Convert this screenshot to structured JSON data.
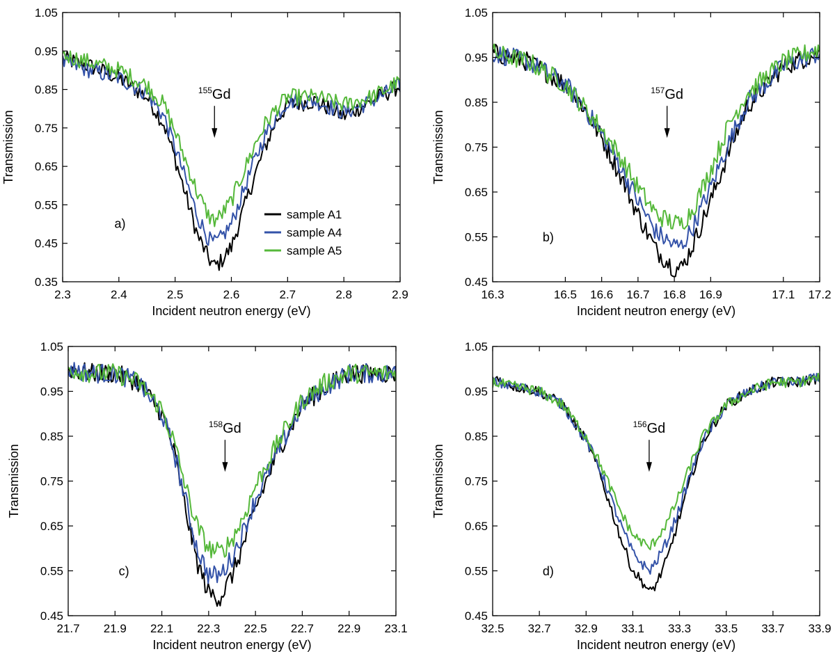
{
  "figure": {
    "series_colors": {
      "A1": "#000000",
      "A4": "#3352a8",
      "A5": "#55b83a"
    },
    "legend": [
      "sample A1",
      "sample A4",
      "sample A5"
    ]
  },
  "chart_data": [
    {
      "type": "line",
      "panel": "a)",
      "annotation": {
        "isotope_mass": "155",
        "isotope_symbol": "Gd",
        "arrow_x": 2.57
      },
      "xlabel": "Incident neutron energy (eV)",
      "ylabel": "Transmission",
      "xlim": [
        2.3,
        2.9
      ],
      "ylim": [
        0.35,
        1.05
      ],
      "xticks": [
        2.3,
        2.4,
        2.5,
        2.6,
        2.7,
        2.8,
        2.9
      ],
      "xtick_labels": [
        "2.3",
        "2.4",
        "2.5",
        "2.6",
        "2.7",
        "2.8",
        "2.9"
      ],
      "yticks": [
        0.35,
        0.45,
        0.55,
        0.65,
        0.75,
        0.85,
        0.95,
        1.05
      ],
      "ytick_labels": [
        "0.35",
        "0.45",
        "0.55",
        "0.65",
        "0.75",
        "0.85",
        "0.95",
        "1.05"
      ],
      "legend_location": "center-right",
      "series": [
        {
          "name": "sample A1",
          "x": [
            2.3,
            2.35,
            2.4,
            2.45,
            2.48,
            2.5,
            2.52,
            2.54,
            2.56,
            2.57,
            2.58,
            2.6,
            2.62,
            2.64,
            2.66,
            2.68,
            2.7,
            2.75,
            2.8,
            2.85,
            2.9
          ],
          "y": [
            0.93,
            0.91,
            0.88,
            0.83,
            0.76,
            0.67,
            0.57,
            0.47,
            0.41,
            0.39,
            0.4,
            0.44,
            0.53,
            0.62,
            0.7,
            0.77,
            0.81,
            0.82,
            0.78,
            0.82,
            0.86
          ]
        },
        {
          "name": "sample A4",
          "x": [
            2.3,
            2.35,
            2.4,
            2.45,
            2.48,
            2.5,
            2.52,
            2.54,
            2.56,
            2.57,
            2.58,
            2.6,
            2.62,
            2.64,
            2.66,
            2.68,
            2.7,
            2.75,
            2.8,
            2.85,
            2.9
          ],
          "y": [
            0.92,
            0.9,
            0.88,
            0.84,
            0.78,
            0.7,
            0.61,
            0.52,
            0.46,
            0.45,
            0.46,
            0.5,
            0.58,
            0.66,
            0.73,
            0.78,
            0.82,
            0.82,
            0.79,
            0.82,
            0.86
          ]
        },
        {
          "name": "sample A5",
          "x": [
            2.3,
            2.35,
            2.4,
            2.45,
            2.48,
            2.5,
            2.52,
            2.54,
            2.56,
            2.57,
            2.58,
            2.6,
            2.62,
            2.64,
            2.66,
            2.68,
            2.7,
            2.75,
            2.8,
            2.85,
            2.9
          ],
          "y": [
            0.94,
            0.92,
            0.9,
            0.86,
            0.81,
            0.74,
            0.66,
            0.58,
            0.52,
            0.51,
            0.52,
            0.56,
            0.63,
            0.7,
            0.76,
            0.8,
            0.83,
            0.83,
            0.81,
            0.83,
            0.87
          ]
        }
      ]
    },
    {
      "type": "line",
      "panel": "b)",
      "annotation": {
        "isotope_mass": "157",
        "isotope_symbol": "Gd",
        "arrow_x": 16.78
      },
      "xlabel": "Incident neutron energy (eV)",
      "ylabel": "Transmission",
      "xlim": [
        16.3,
        17.2
      ],
      "ylim": [
        0.45,
        1.05
      ],
      "xticks": [
        16.3,
        16.5,
        16.6,
        16.7,
        16.8,
        16.9,
        17.1,
        17.2
      ],
      "xtick_labels": [
        "16.3",
        "16.5",
        "16.6",
        "16.7",
        "16.8",
        "16.9",
        "17.1",
        "17.2"
      ],
      "yticks": [
        0.45,
        0.55,
        0.65,
        0.75,
        0.85,
        0.95,
        1.05
      ],
      "ytick_labels": [
        "0.45",
        "0.55",
        "0.65",
        "0.75",
        "0.85",
        "0.95",
        "1.05"
      ],
      "series": [
        {
          "name": "sample A1",
          "x": [
            16.3,
            16.4,
            16.5,
            16.55,
            16.6,
            16.65,
            16.7,
            16.75,
            16.8,
            16.82,
            16.85,
            16.9,
            16.95,
            17.0,
            17.1,
            17.2
          ],
          "y": [
            0.96,
            0.94,
            0.89,
            0.84,
            0.77,
            0.69,
            0.6,
            0.52,
            0.48,
            0.48,
            0.53,
            0.63,
            0.74,
            0.84,
            0.93,
            0.96
          ]
        },
        {
          "name": "sample A4",
          "x": [
            16.3,
            16.4,
            16.5,
            16.55,
            16.6,
            16.65,
            16.7,
            16.75,
            16.8,
            16.82,
            16.85,
            16.9,
            16.95,
            17.0,
            17.1,
            17.2
          ],
          "y": [
            0.96,
            0.94,
            0.89,
            0.84,
            0.78,
            0.71,
            0.63,
            0.56,
            0.53,
            0.53,
            0.57,
            0.66,
            0.76,
            0.85,
            0.93,
            0.96
          ]
        },
        {
          "name": "sample A5",
          "x": [
            16.3,
            16.4,
            16.5,
            16.55,
            16.6,
            16.65,
            16.7,
            16.75,
            16.8,
            16.82,
            16.85,
            16.9,
            16.95,
            17.0,
            17.1,
            17.2
          ],
          "y": [
            0.96,
            0.94,
            0.89,
            0.84,
            0.79,
            0.73,
            0.66,
            0.6,
            0.58,
            0.58,
            0.61,
            0.7,
            0.8,
            0.87,
            0.94,
            0.97
          ]
        }
      ]
    },
    {
      "type": "line",
      "panel": "c)",
      "annotation": {
        "isotope_mass": "158",
        "isotope_symbol": "Gd",
        "arrow_x": 22.37
      },
      "xlabel": "Incident neutron energy (eV)",
      "ylabel": "Transmission",
      "xlim": [
        21.7,
        23.1
      ],
      "ylim": [
        0.45,
        1.05
      ],
      "xticks": [
        21.7,
        21.9,
        22.1,
        22.3,
        22.5,
        22.7,
        22.9,
        23.1
      ],
      "xtick_labels": [
        "21.7",
        "21.9",
        "22.1",
        "22.3",
        "22.5",
        "22.7",
        "22.9",
        "23.1"
      ],
      "yticks": [
        0.45,
        0.55,
        0.65,
        0.75,
        0.85,
        0.95,
        1.05
      ],
      "ytick_labels": [
        "0.45",
        "0.55",
        "0.65",
        "0.75",
        "0.85",
        "0.95",
        "1.05"
      ],
      "series": [
        {
          "name": "sample A1",
          "x": [
            21.7,
            21.8,
            21.9,
            22.0,
            22.1,
            22.15,
            22.2,
            22.25,
            22.3,
            22.35,
            22.4,
            22.45,
            22.5,
            22.6,
            22.7,
            22.8,
            22.9,
            23.0,
            23.1
          ],
          "y": [
            1.0,
            0.99,
            0.99,
            0.97,
            0.9,
            0.82,
            0.69,
            0.57,
            0.5,
            0.49,
            0.54,
            0.61,
            0.69,
            0.82,
            0.92,
            0.96,
            0.99,
            0.99,
            0.99
          ]
        },
        {
          "name": "sample A4",
          "x": [
            21.7,
            21.8,
            21.9,
            22.0,
            22.1,
            22.15,
            22.2,
            22.25,
            22.3,
            22.35,
            22.4,
            22.45,
            22.5,
            22.6,
            22.7,
            22.8,
            22.9,
            23.0,
            23.1
          ],
          "y": [
            1.0,
            0.99,
            0.99,
            0.97,
            0.9,
            0.82,
            0.71,
            0.6,
            0.54,
            0.54,
            0.58,
            0.64,
            0.71,
            0.82,
            0.92,
            0.96,
            0.99,
            0.99,
            0.99
          ]
        },
        {
          "name": "sample A5",
          "x": [
            21.7,
            21.8,
            21.9,
            22.0,
            22.1,
            22.15,
            22.2,
            22.25,
            22.3,
            22.35,
            22.4,
            22.45,
            22.5,
            22.6,
            22.7,
            22.8,
            22.9,
            23.0,
            23.1
          ],
          "y": [
            1.0,
            0.99,
            0.99,
            0.97,
            0.91,
            0.84,
            0.74,
            0.65,
            0.6,
            0.59,
            0.62,
            0.67,
            0.74,
            0.84,
            0.93,
            0.97,
            0.99,
            0.99,
            0.99
          ]
        }
      ]
    },
    {
      "type": "line",
      "panel": "d)",
      "annotation": {
        "isotope_mass": "156",
        "isotope_symbol": "Gd",
        "arrow_x": 33.17
      },
      "xlabel": "Incident neutron energy (eV)",
      "ylabel": "Transmission",
      "xlim": [
        32.5,
        33.9
      ],
      "ylim": [
        0.45,
        1.05
      ],
      "xticks": [
        32.5,
        32.7,
        32.9,
        33.1,
        33.3,
        33.5,
        33.7,
        33.9
      ],
      "xtick_labels": [
        "32.5",
        "32.7",
        "32.9",
        "33.1",
        "33.3",
        "33.5",
        "33.7",
        "33.9"
      ],
      "yticks": [
        0.45,
        0.55,
        0.65,
        0.75,
        0.85,
        0.95,
        1.05
      ],
      "ytick_labels": [
        "0.45",
        "0.55",
        "0.65",
        "0.75",
        "0.85",
        "0.95",
        "1.05"
      ],
      "series": [
        {
          "name": "sample A1",
          "x": [
            32.5,
            32.6,
            32.7,
            32.8,
            32.9,
            32.95,
            33.0,
            33.05,
            33.1,
            33.15,
            33.17,
            33.2,
            33.25,
            33.3,
            33.35,
            33.4,
            33.5,
            33.6,
            33.7,
            33.8,
            33.9
          ],
          "y": [
            0.98,
            0.96,
            0.95,
            0.92,
            0.84,
            0.78,
            0.7,
            0.62,
            0.55,
            0.52,
            0.5,
            0.52,
            0.58,
            0.67,
            0.76,
            0.84,
            0.92,
            0.95,
            0.97,
            0.97,
            0.98
          ]
        },
        {
          "name": "sample A4",
          "x": [
            32.5,
            32.6,
            32.7,
            32.8,
            32.9,
            32.95,
            33.0,
            33.05,
            33.1,
            33.15,
            33.17,
            33.2,
            33.25,
            33.3,
            33.35,
            33.4,
            33.5,
            33.6,
            33.7,
            33.8,
            33.9
          ],
          "y": [
            0.97,
            0.96,
            0.95,
            0.92,
            0.84,
            0.79,
            0.72,
            0.65,
            0.59,
            0.56,
            0.55,
            0.57,
            0.62,
            0.69,
            0.77,
            0.84,
            0.92,
            0.95,
            0.97,
            0.97,
            0.98
          ]
        },
        {
          "name": "sample A5",
          "x": [
            32.5,
            32.6,
            32.7,
            32.8,
            32.9,
            32.95,
            33.0,
            33.05,
            33.1,
            33.15,
            33.17,
            33.2,
            33.25,
            33.3,
            33.35,
            33.4,
            33.5,
            33.6,
            33.7,
            33.8,
            33.9
          ],
          "y": [
            0.97,
            0.96,
            0.95,
            0.92,
            0.85,
            0.8,
            0.74,
            0.68,
            0.63,
            0.61,
            0.6,
            0.62,
            0.66,
            0.72,
            0.79,
            0.85,
            0.92,
            0.95,
            0.97,
            0.97,
            0.98
          ]
        }
      ]
    }
  ]
}
